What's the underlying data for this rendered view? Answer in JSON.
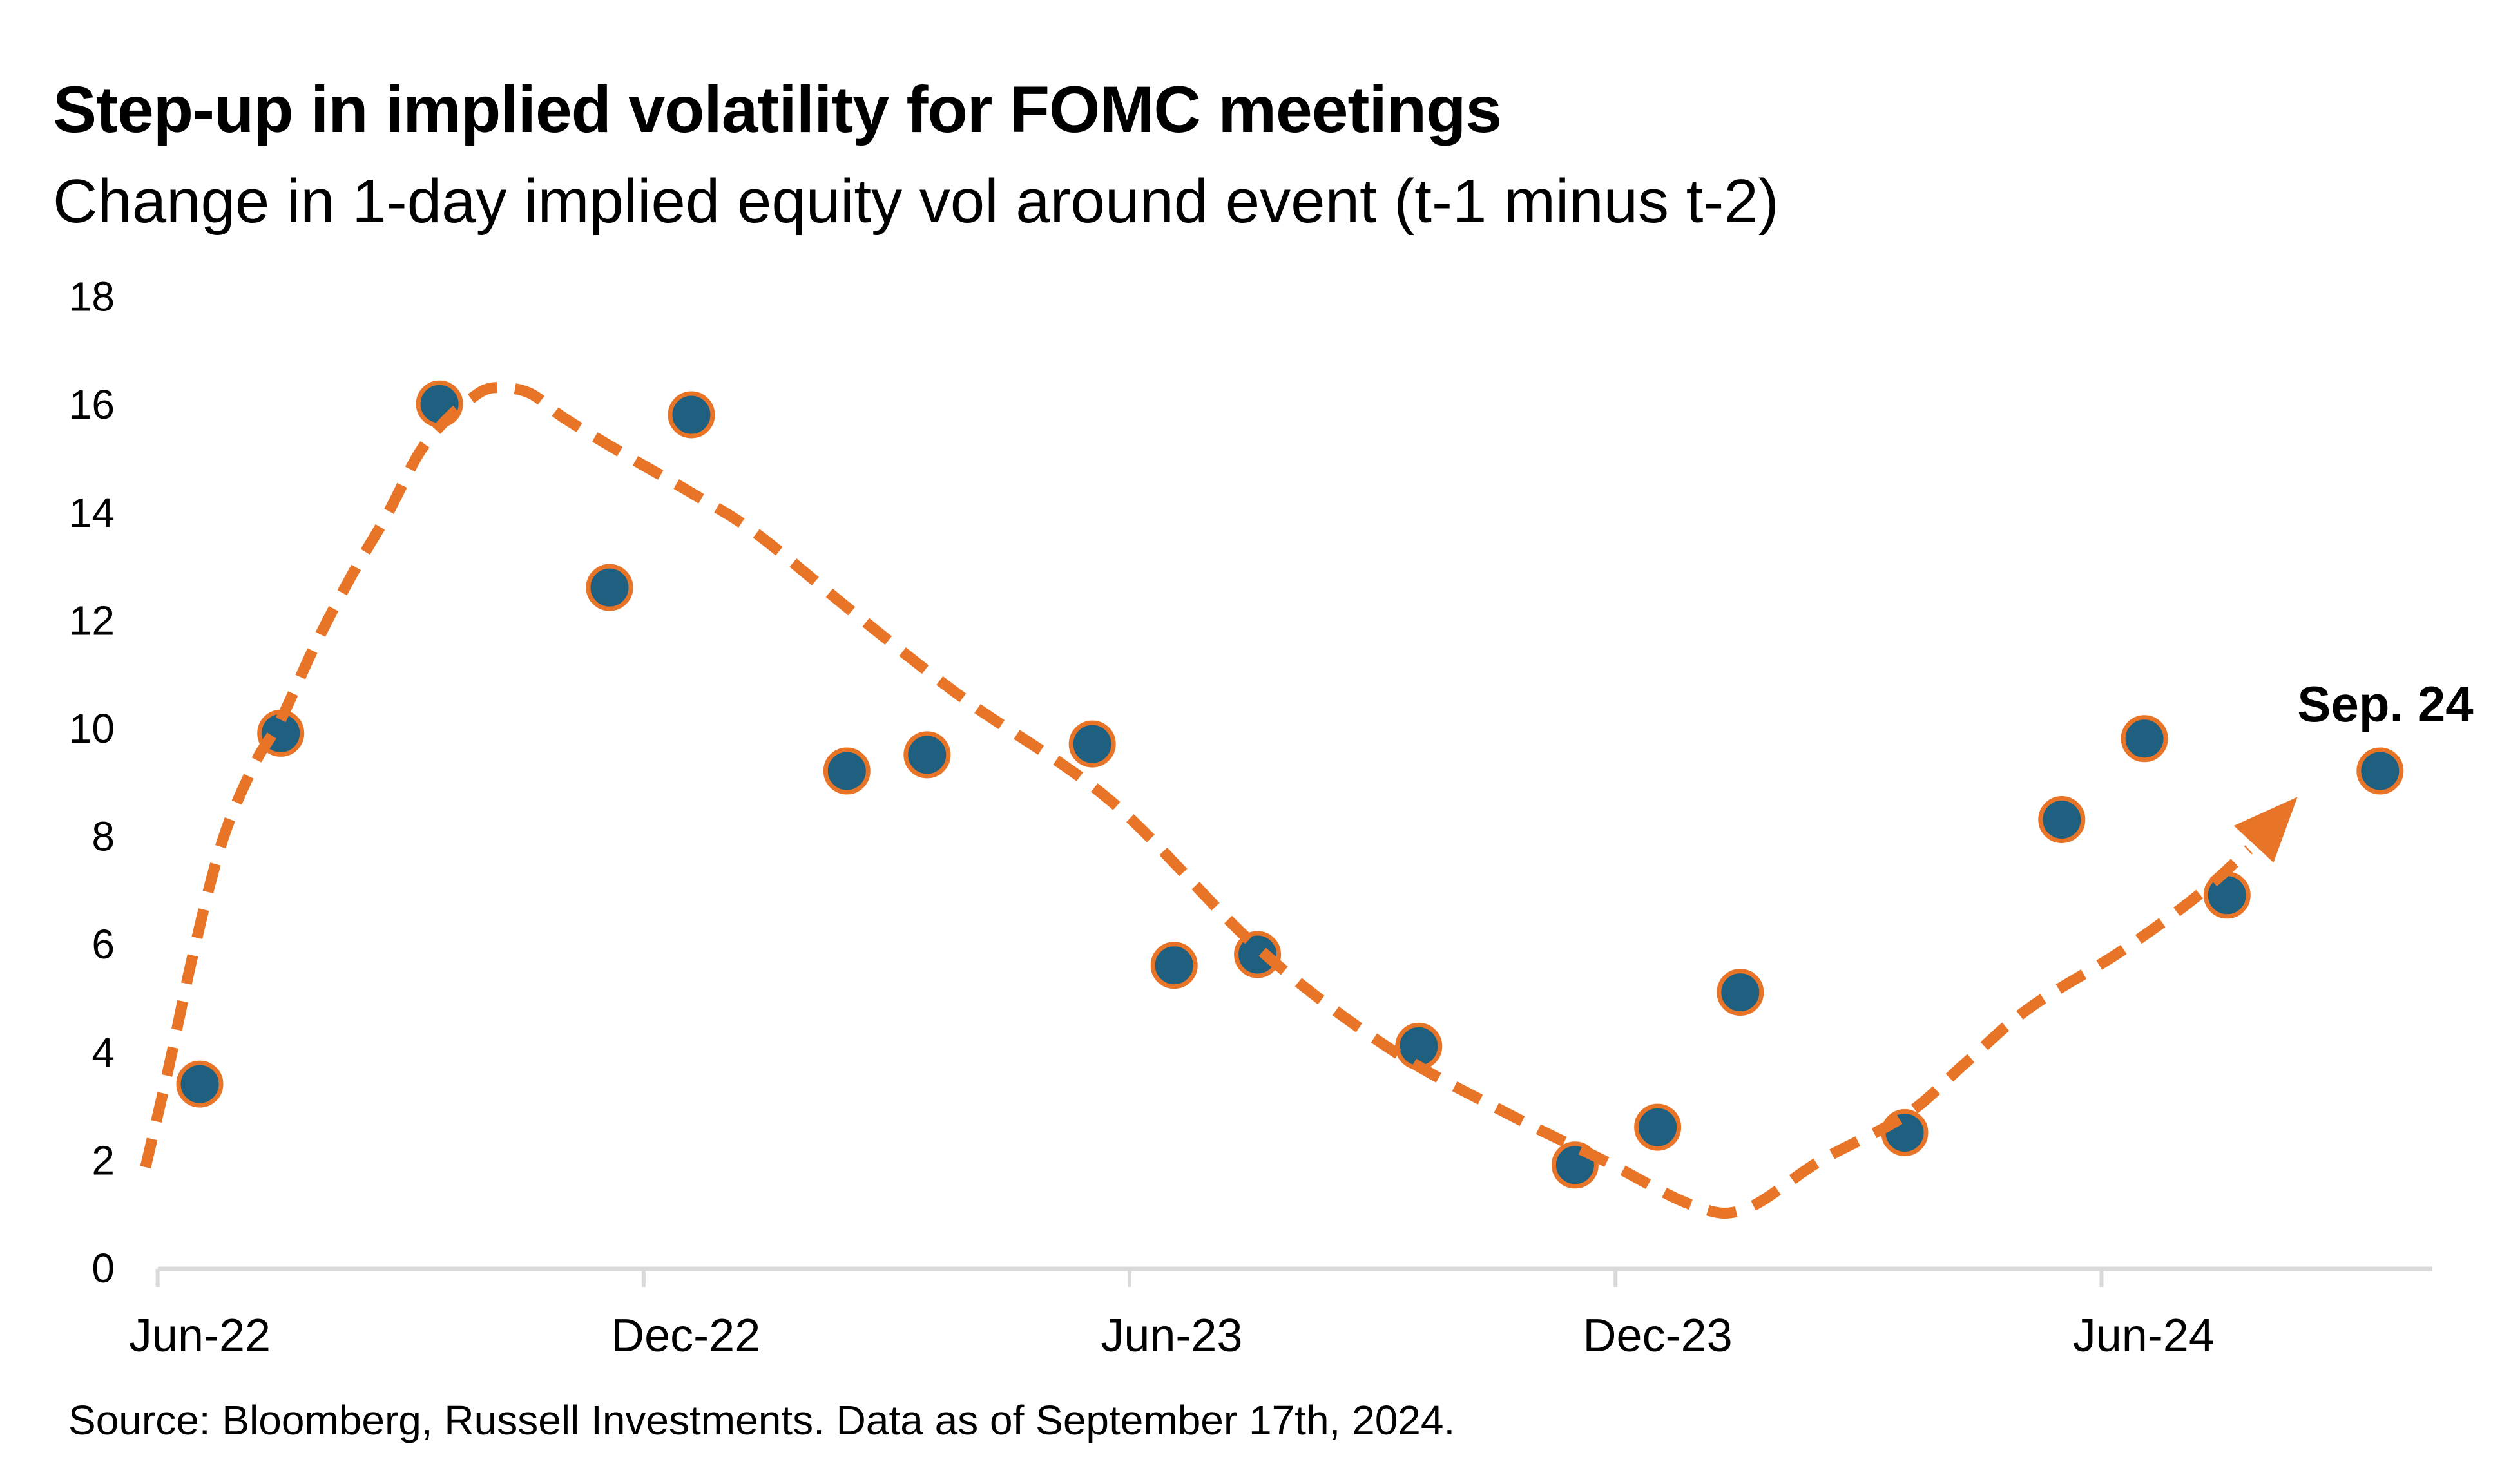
{
  "header": {
    "title": "Step-up in implied volatility for FOMC meetings",
    "subtitle": "Change in 1-day implied equity vol around event (t-1 minus t-2)"
  },
  "footer": {
    "source": "Source: Bloomberg, Russell Investments. Data as of September 17th, 2024."
  },
  "annotation": {
    "label": "Sep. 24"
  },
  "colors": {
    "dot_fill": "#1f5f80",
    "dot_ring": "#e87527",
    "trend": "#e87527",
    "axis": "#d9d9d9",
    "text": "#000000",
    "background": "#ffffff"
  },
  "chart_data": {
    "type": "scatter",
    "title": "Step-up in implied volatility for FOMC meetings",
    "subtitle": "Change in 1-day implied equity vol around event (t-1 minus t-2)",
    "xlabel": "",
    "ylabel": "",
    "grid": false,
    "legend": "none",
    "ylim": [
      0,
      18
    ],
    "y_ticks": [
      0,
      2,
      4,
      6,
      8,
      10,
      12,
      14,
      16,
      18
    ],
    "x_tick_labels": [
      "Jun-22",
      "Dec-22",
      "Jun-23",
      "Dec-23",
      "Jun-24"
    ],
    "x_tick_months": [
      0,
      6,
      12,
      18,
      24
    ],
    "x_unit": "months since Jun-2022",
    "points": [
      {
        "label": "Jun-22",
        "x": 0.0,
        "value": 3.4
      },
      {
        "label": "Jul-22",
        "x": 1.0,
        "value": 9.9
      },
      {
        "label": "Sep-22",
        "x": 2.96,
        "value": 16.0
      },
      {
        "label": "Nov-22",
        "x": 5.06,
        "value": 12.6
      },
      {
        "label": "Dec-22",
        "x": 6.07,
        "value": 15.8
      },
      {
        "label": "Feb-23",
        "x": 7.99,
        "value": 9.2
      },
      {
        "label": "Mar-23",
        "x": 8.98,
        "value": 9.5
      },
      {
        "label": "May-23",
        "x": 11.02,
        "value": 9.7
      },
      {
        "label": "Jun-23",
        "x": 12.03,
        "value": 5.6
      },
      {
        "label": "Jul-23",
        "x": 13.06,
        "value": 5.8
      },
      {
        "label": "Sep-23",
        "x": 15.05,
        "value": 4.1
      },
      {
        "label": "Nov-23",
        "x": 16.98,
        "value": 1.9
      },
      {
        "label": "Dec-23",
        "x": 18.0,
        "value": 2.6
      },
      {
        "label": "Jan-24",
        "x": 19.02,
        "value": 5.1
      },
      {
        "label": "Mar-24",
        "x": 21.05,
        "value": 2.5
      },
      {
        "label": "May-24",
        "x": 22.99,
        "value": 8.3
      },
      {
        "label": "Jun-24",
        "x": 24.01,
        "value": 9.8
      },
      {
        "label": "Jul-24",
        "x": 25.03,
        "value": 6.9
      },
      {
        "label": "Sep-24",
        "x": 26.92,
        "value": 9.2
      }
    ],
    "trend": {
      "style": "dashed",
      "ends_with_arrow": true,
      "anchors_mv": [
        [
          -0.67,
          1.86
        ],
        [
          -0.38,
          3.73
        ],
        [
          -0.08,
          5.82
        ],
        [
          0.28,
          7.91
        ],
        [
          0.68,
          9.34
        ],
        [
          0.99,
          10.12
        ],
        [
          1.43,
          11.55
        ],
        [
          1.87,
          12.81
        ],
        [
          2.31,
          13.94
        ],
        [
          2.7,
          15.07
        ],
        [
          3.02,
          15.67
        ],
        [
          3.34,
          16.09
        ],
        [
          3.62,
          16.3
        ],
        [
          4.06,
          16.21
        ],
        [
          4.49,
          15.75
        ],
        [
          5.17,
          15.13
        ],
        [
          6.13,
          14.3
        ],
        [
          6.89,
          13.58
        ],
        [
          8.11,
          12.09
        ],
        [
          9.47,
          10.5
        ],
        [
          11.26,
          8.63
        ],
        [
          13.05,
          5.94
        ],
        [
          14.68,
          4.07
        ],
        [
          16.19,
          2.82
        ],
        [
          17.34,
          1.98
        ],
        [
          18.44,
          1.15
        ],
        [
          19.09,
          1.09
        ],
        [
          20.01,
          1.98
        ],
        [
          21.06,
          2.82
        ],
        [
          21.8,
          3.79
        ],
        [
          22.59,
          4.81
        ],
        [
          23.71,
          5.85
        ],
        [
          24.65,
          6.87
        ],
        [
          25.3,
          7.75
        ],
        [
          25.9,
          8.72
        ]
      ]
    },
    "annotations": [
      {
        "text": "Sep. 24",
        "near_point": "Sep-24"
      }
    ]
  }
}
